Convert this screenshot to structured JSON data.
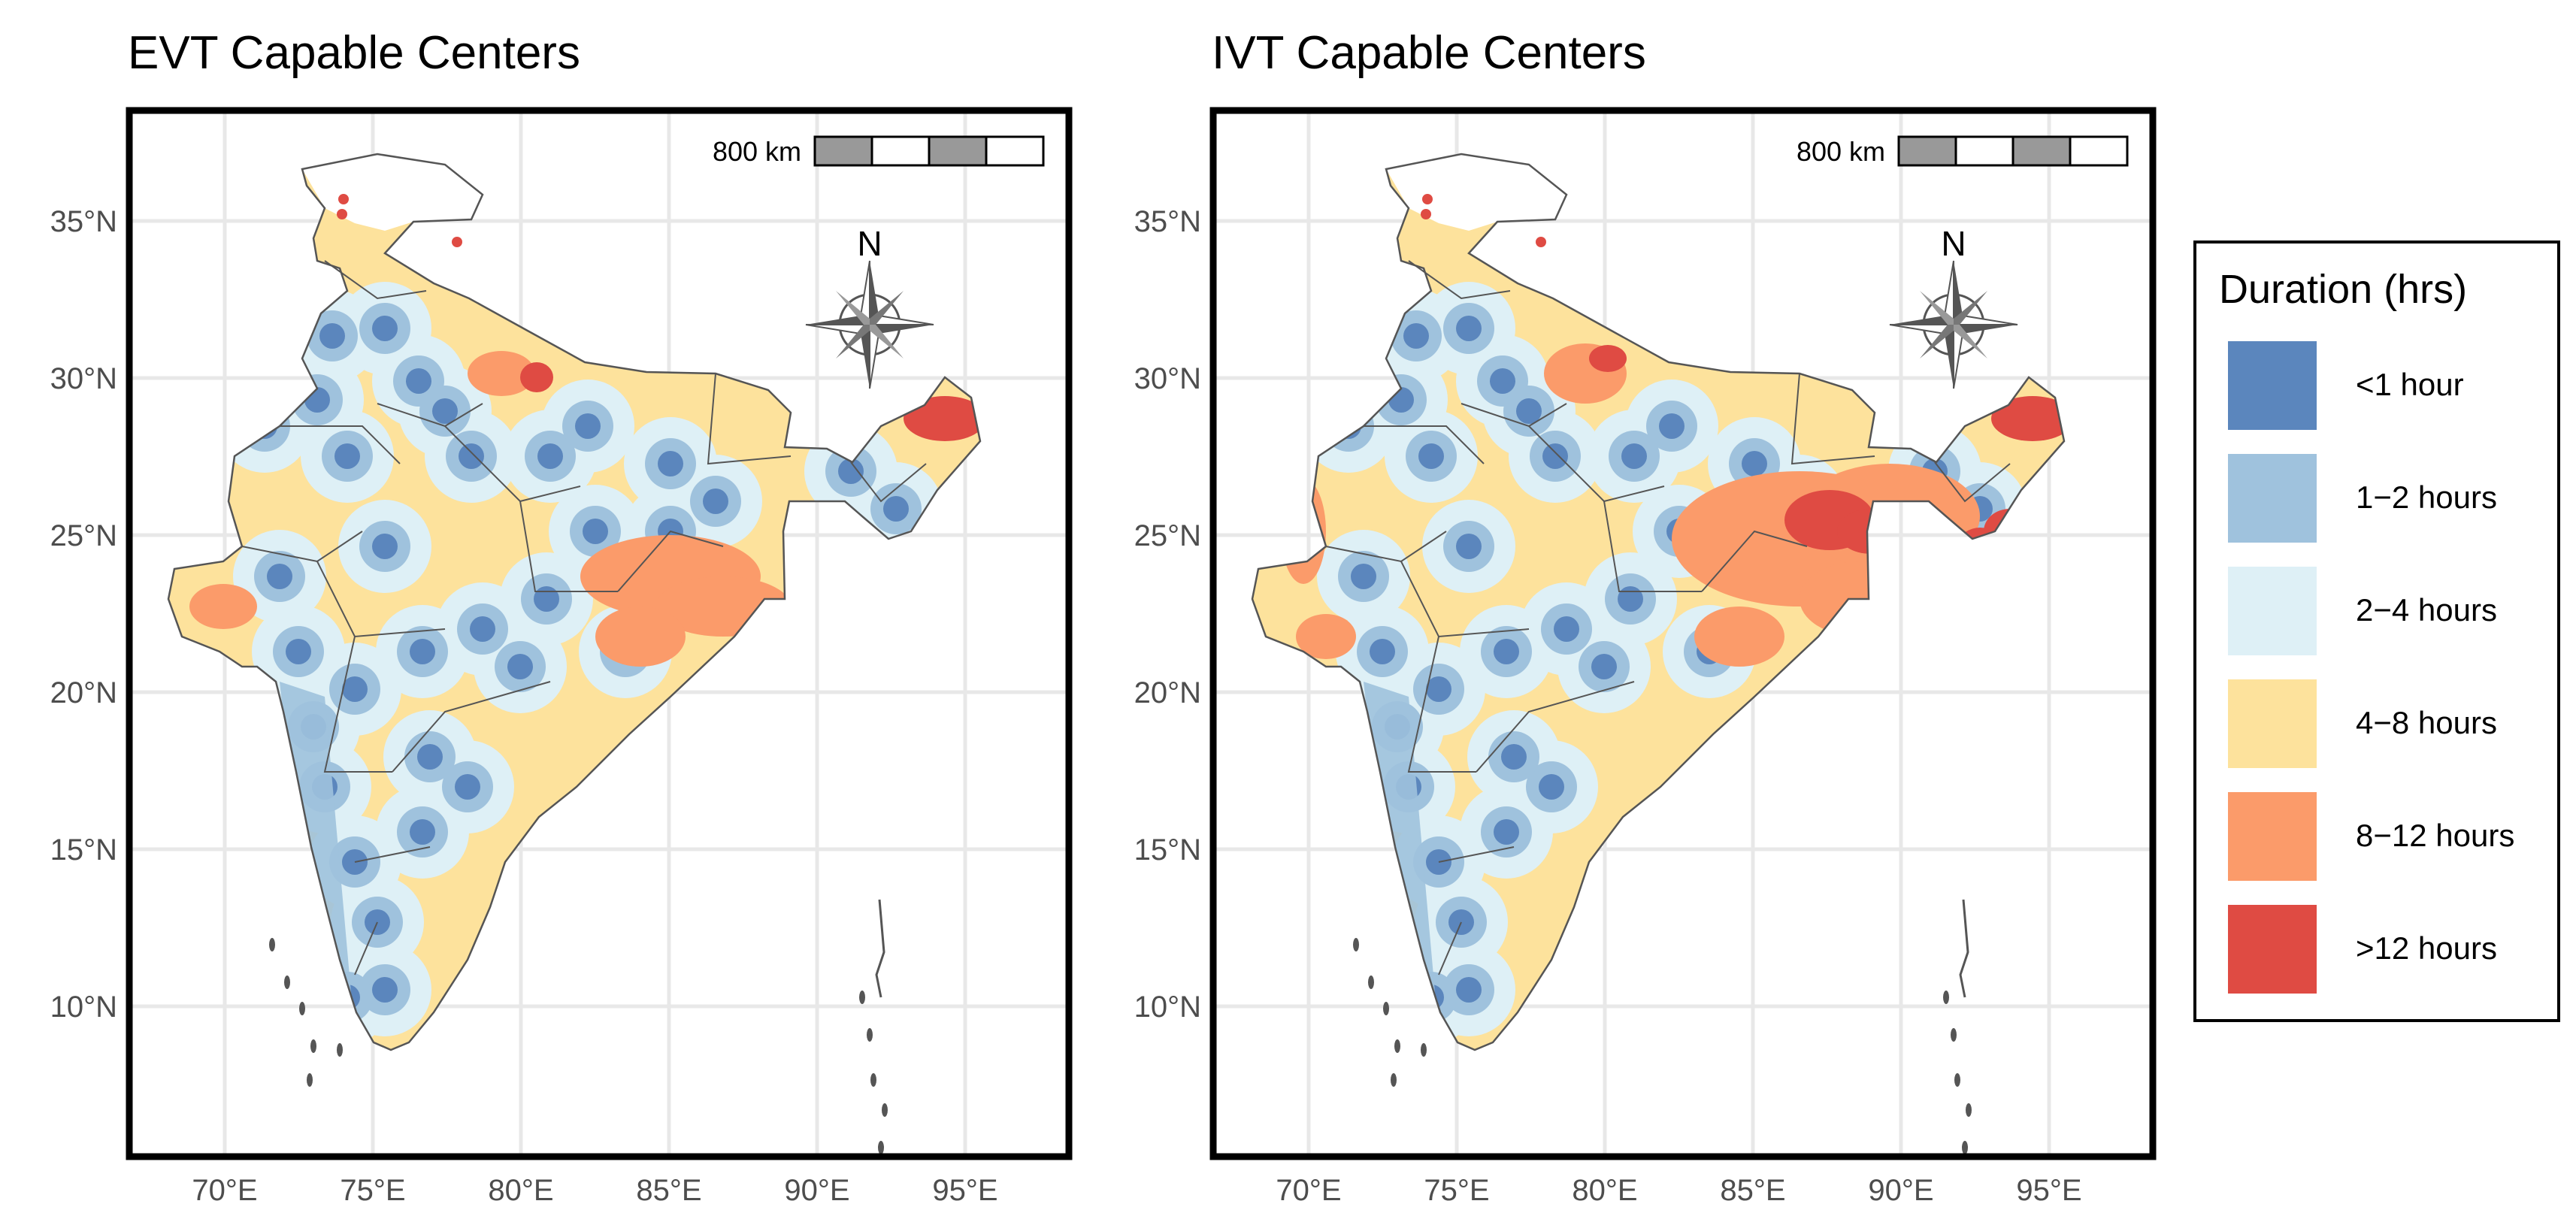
{
  "panels": [
    {
      "title": "EVT Capable Centers",
      "x_ticks": [
        "70°E",
        "75°E",
        "80°E",
        "85°E",
        "90°E",
        "95°E"
      ],
      "y_ticks": [
        "35°N",
        "30°N",
        "25°N",
        "20°N",
        "15°N",
        "10°N"
      ],
      "scale_bar_label": "800 km",
      "north_label": "N",
      "orange_zone": "central-east"
    },
    {
      "title": "IVT Capable Centers",
      "x_ticks": [
        "70°E",
        "75°E",
        "80°E",
        "85°E",
        "90°E",
        "95°E"
      ],
      "y_ticks": [
        "35°N",
        "30°N",
        "25°N",
        "20°N",
        "15°N",
        "10°N"
      ],
      "scale_bar_label": "800 km",
      "north_label": "N",
      "orange_zone": "east-northeast"
    }
  ],
  "legend": {
    "title": "Duration (hrs)",
    "items": [
      {
        "label": "<1 hour",
        "color": "#5b86bd"
      },
      {
        "label": "1−2 hours",
        "color": "#9fc2dd"
      },
      {
        "label": "2−4 hours",
        "color": "#def0f6"
      },
      {
        "label": "4−8 hours",
        "color": "#fde29c"
      },
      {
        "label": "8−12 hours",
        "color": "#fb9b6a"
      },
      {
        "label": ">12 hours",
        "color": "#df4b43"
      }
    ]
  },
  "colors": {
    "frame": "#000000",
    "grid": "#e8e8e8",
    "boundary": "#555555"
  }
}
